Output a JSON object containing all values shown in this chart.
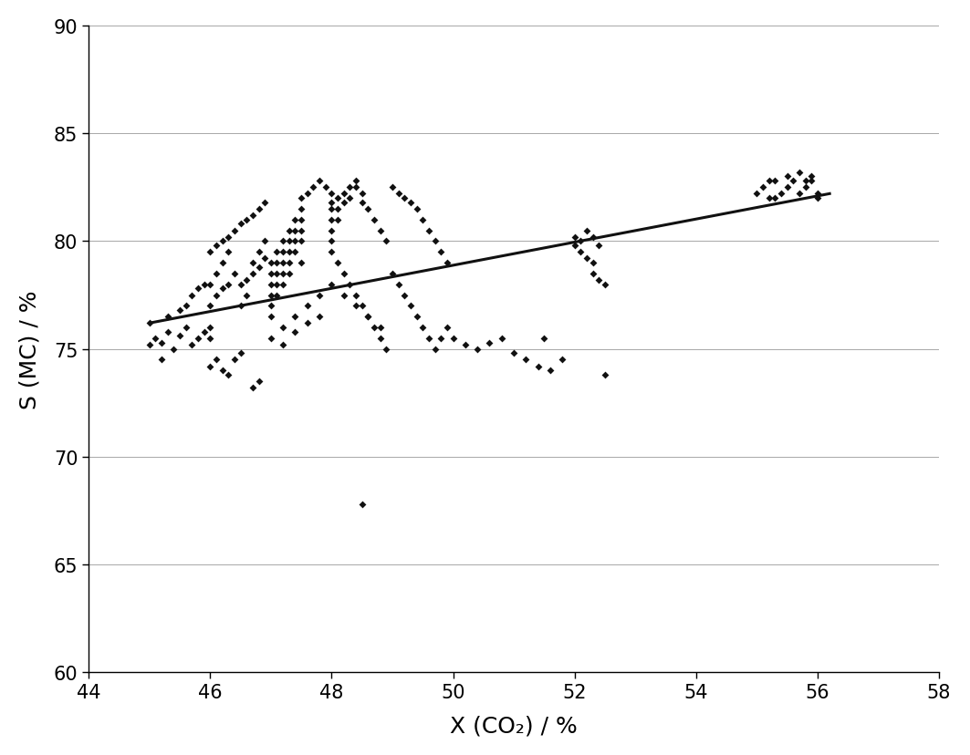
{
  "xlabel": "X (CO₂) / %",
  "ylabel": "S (MC) / %",
  "xlim": [
    44,
    58
  ],
  "ylim": [
    60,
    90
  ],
  "xticks": [
    44,
    46,
    48,
    50,
    52,
    54,
    56,
    58
  ],
  "yticks": [
    60,
    65,
    70,
    75,
    80,
    85,
    90
  ],
  "background_color": "#ffffff",
  "grid_color": "#999999",
  "marker_color": "#111111",
  "line_color": "#111111",
  "scatter_points": [
    [
      45.0,
      75.2
    ],
    [
      45.1,
      75.5
    ],
    [
      45.2,
      75.3
    ],
    [
      45.3,
      75.8
    ],
    [
      45.4,
      75.0
    ],
    [
      45.5,
      75.6
    ],
    [
      45.6,
      76.0
    ],
    [
      45.7,
      75.2
    ],
    [
      45.8,
      75.5
    ],
    [
      45.9,
      75.8
    ],
    [
      45.0,
      76.2
    ],
    [
      45.3,
      76.5
    ],
    [
      45.5,
      76.8
    ],
    [
      45.6,
      77.0
    ],
    [
      45.7,
      77.5
    ],
    [
      45.8,
      77.8
    ],
    [
      45.9,
      78.0
    ],
    [
      45.2,
      74.5
    ],
    [
      46.0,
      75.5
    ],
    [
      46.0,
      76.0
    ],
    [
      46.0,
      77.0
    ],
    [
      46.0,
      78.0
    ],
    [
      46.1,
      77.5
    ],
    [
      46.1,
      78.5
    ],
    [
      46.2,
      77.8
    ],
    [
      46.2,
      79.0
    ],
    [
      46.3,
      78.0
    ],
    [
      46.3,
      79.5
    ],
    [
      46.4,
      78.5
    ],
    [
      46.5,
      78.0
    ],
    [
      46.5,
      77.0
    ],
    [
      46.6,
      78.2
    ],
    [
      46.6,
      77.5
    ],
    [
      46.7,
      78.5
    ],
    [
      46.7,
      79.0
    ],
    [
      46.8,
      78.8
    ],
    [
      46.8,
      79.5
    ],
    [
      46.9,
      79.2
    ],
    [
      46.9,
      80.0
    ],
    [
      46.0,
      79.5
    ],
    [
      46.1,
      79.8
    ],
    [
      46.2,
      80.0
    ],
    [
      46.3,
      80.2
    ],
    [
      46.4,
      80.5
    ],
    [
      46.5,
      80.8
    ],
    [
      46.6,
      81.0
    ],
    [
      46.7,
      81.2
    ],
    [
      46.8,
      81.5
    ],
    [
      46.9,
      81.8
    ],
    [
      46.0,
      74.2
    ],
    [
      46.1,
      74.5
    ],
    [
      46.2,
      74.0
    ],
    [
      46.3,
      73.8
    ],
    [
      46.4,
      74.5
    ],
    [
      46.5,
      74.8
    ],
    [
      46.7,
      73.2
    ],
    [
      46.8,
      73.5
    ],
    [
      47.0,
      79.0
    ],
    [
      47.0,
      78.5
    ],
    [
      47.0,
      78.0
    ],
    [
      47.0,
      77.5
    ],
    [
      47.0,
      77.0
    ],
    [
      47.1,
      79.5
    ],
    [
      47.1,
      79.0
    ],
    [
      47.1,
      78.5
    ],
    [
      47.1,
      78.0
    ],
    [
      47.1,
      77.5
    ],
    [
      47.2,
      80.0
    ],
    [
      47.2,
      79.5
    ],
    [
      47.2,
      79.0
    ],
    [
      47.2,
      78.5
    ],
    [
      47.2,
      78.0
    ],
    [
      47.3,
      80.5
    ],
    [
      47.3,
      80.0
    ],
    [
      47.3,
      79.5
    ],
    [
      47.3,
      79.0
    ],
    [
      47.3,
      78.5
    ],
    [
      47.4,
      81.0
    ],
    [
      47.4,
      80.5
    ],
    [
      47.4,
      80.0
    ],
    [
      47.4,
      79.5
    ],
    [
      47.5,
      79.0
    ],
    [
      47.5,
      80.0
    ],
    [
      47.5,
      80.5
    ],
    [
      47.5,
      81.0
    ],
    [
      47.5,
      81.5
    ],
    [
      47.5,
      82.0
    ],
    [
      47.6,
      82.2
    ],
    [
      47.7,
      82.5
    ],
    [
      47.8,
      82.8
    ],
    [
      47.9,
      82.5
    ],
    [
      48.0,
      82.2
    ],
    [
      47.0,
      76.5
    ],
    [
      47.2,
      76.0
    ],
    [
      47.4,
      76.5
    ],
    [
      47.6,
      77.0
    ],
    [
      47.8,
      77.5
    ],
    [
      47.0,
      75.5
    ],
    [
      47.2,
      75.2
    ],
    [
      47.4,
      75.8
    ],
    [
      47.6,
      76.2
    ],
    [
      47.8,
      76.5
    ],
    [
      48.0,
      81.8
    ],
    [
      48.0,
      81.5
    ],
    [
      48.0,
      81.0
    ],
    [
      48.0,
      80.5
    ],
    [
      48.0,
      80.0
    ],
    [
      48.1,
      82.0
    ],
    [
      48.1,
      81.5
    ],
    [
      48.1,
      81.0
    ],
    [
      48.2,
      82.2
    ],
    [
      48.2,
      81.8
    ],
    [
      48.3,
      82.5
    ],
    [
      48.3,
      82.0
    ],
    [
      48.4,
      82.8
    ],
    [
      48.4,
      82.5
    ],
    [
      48.5,
      82.2
    ],
    [
      48.5,
      81.8
    ],
    [
      48.6,
      81.5
    ],
    [
      48.7,
      81.0
    ],
    [
      48.8,
      80.5
    ],
    [
      48.9,
      80.0
    ],
    [
      48.0,
      79.5
    ],
    [
      48.1,
      79.0
    ],
    [
      48.2,
      78.5
    ],
    [
      48.3,
      78.0
    ],
    [
      48.4,
      77.5
    ],
    [
      48.5,
      77.0
    ],
    [
      48.6,
      76.5
    ],
    [
      48.7,
      76.0
    ],
    [
      48.8,
      75.5
    ],
    [
      48.9,
      75.0
    ],
    [
      48.0,
      78.0
    ],
    [
      48.2,
      77.5
    ],
    [
      48.4,
      77.0
    ],
    [
      48.6,
      76.5
    ],
    [
      48.8,
      76.0
    ],
    [
      48.5,
      67.8
    ],
    [
      49.0,
      82.5
    ],
    [
      49.1,
      82.2
    ],
    [
      49.2,
      82.0
    ],
    [
      49.3,
      81.8
    ],
    [
      49.4,
      81.5
    ],
    [
      49.5,
      81.0
    ],
    [
      49.6,
      80.5
    ],
    [
      49.7,
      80.0
    ],
    [
      49.8,
      79.5
    ],
    [
      49.9,
      79.0
    ],
    [
      49.0,
      78.5
    ],
    [
      49.1,
      78.0
    ],
    [
      49.2,
      77.5
    ],
    [
      49.3,
      77.0
    ],
    [
      49.4,
      76.5
    ],
    [
      49.5,
      76.0
    ],
    [
      49.6,
      75.5
    ],
    [
      49.7,
      75.0
    ],
    [
      49.8,
      75.5
    ],
    [
      49.9,
      76.0
    ],
    [
      50.0,
      75.5
    ],
    [
      50.2,
      75.2
    ],
    [
      50.4,
      75.0
    ],
    [
      50.6,
      75.3
    ],
    [
      50.8,
      75.5
    ],
    [
      51.0,
      74.8
    ],
    [
      51.2,
      74.5
    ],
    [
      51.4,
      74.2
    ],
    [
      51.6,
      74.0
    ],
    [
      51.5,
      75.5
    ],
    [
      51.8,
      74.5
    ],
    [
      52.0,
      79.8
    ],
    [
      52.0,
      80.2
    ],
    [
      52.1,
      80.0
    ],
    [
      52.1,
      79.5
    ],
    [
      52.2,
      79.2
    ],
    [
      52.3,
      79.0
    ],
    [
      52.3,
      78.5
    ],
    [
      52.4,
      78.2
    ],
    [
      52.5,
      78.0
    ],
    [
      52.2,
      80.5
    ],
    [
      52.3,
      80.2
    ],
    [
      52.4,
      79.8
    ],
    [
      52.5,
      73.8
    ],
    [
      55.0,
      82.2
    ],
    [
      55.1,
      82.5
    ],
    [
      55.2,
      82.8
    ],
    [
      55.3,
      82.0
    ],
    [
      55.4,
      82.2
    ],
    [
      55.5,
      82.5
    ],
    [
      55.6,
      82.8
    ],
    [
      55.7,
      82.2
    ],
    [
      55.8,
      82.5
    ],
    [
      55.9,
      82.8
    ],
    [
      56.0,
      82.0
    ],
    [
      56.0,
      82.2
    ],
    [
      55.2,
      82.0
    ],
    [
      55.3,
      82.8
    ],
    [
      55.5,
      83.0
    ],
    [
      55.7,
      83.2
    ],
    [
      55.8,
      82.8
    ],
    [
      55.9,
      83.0
    ]
  ],
  "trendline_x": [
    45.0,
    56.2
  ],
  "trendline_y": [
    76.2,
    82.2
  ],
  "xlabel_fontsize": 18,
  "ylabel_fontsize": 18,
  "tick_fontsize": 15,
  "marker_size": 4,
  "line_width": 2.2
}
